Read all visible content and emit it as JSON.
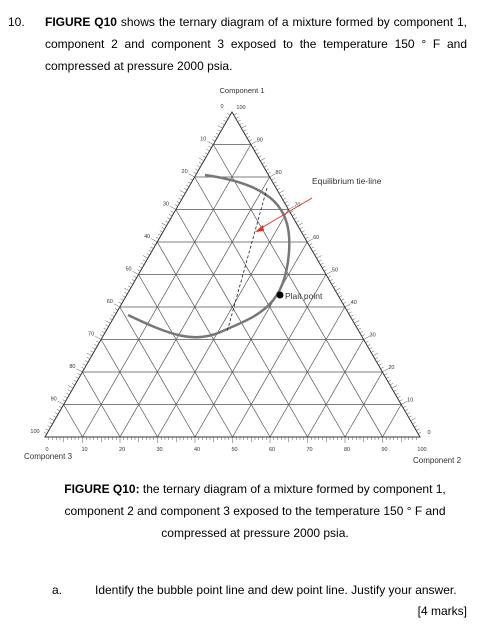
{
  "question": {
    "number": "10.",
    "figure_ref": "FIGURE Q10",
    "text": " shows the ternary diagram of a mixture formed by component 1, component 2 and component 3 exposed to the temperature 150 ° F and compressed at pressure 2000 psia."
  },
  "diagram": {
    "apex_top": "Component 1",
    "apex_right": "Component 2",
    "apex_left": "Component 3",
    "ticks": [
      0,
      10,
      20,
      30,
      40,
      50,
      60,
      70,
      80,
      90,
      100
    ],
    "annotations": {
      "tie_line": "Equilibrium tie-line",
      "plait_point": "Plait point"
    }
  },
  "caption": {
    "label": "FIGURE Q10:",
    "text": " the ternary diagram of a mixture formed by component 1, component 2 and component 3 exposed to the temperature 150 ° F and compressed at pressure 2000 psia."
  },
  "part": {
    "label": "a.",
    "text": "Identify the bubble point line and dew point line.  Justify your answer.",
    "marks": "[4 marks]"
  }
}
